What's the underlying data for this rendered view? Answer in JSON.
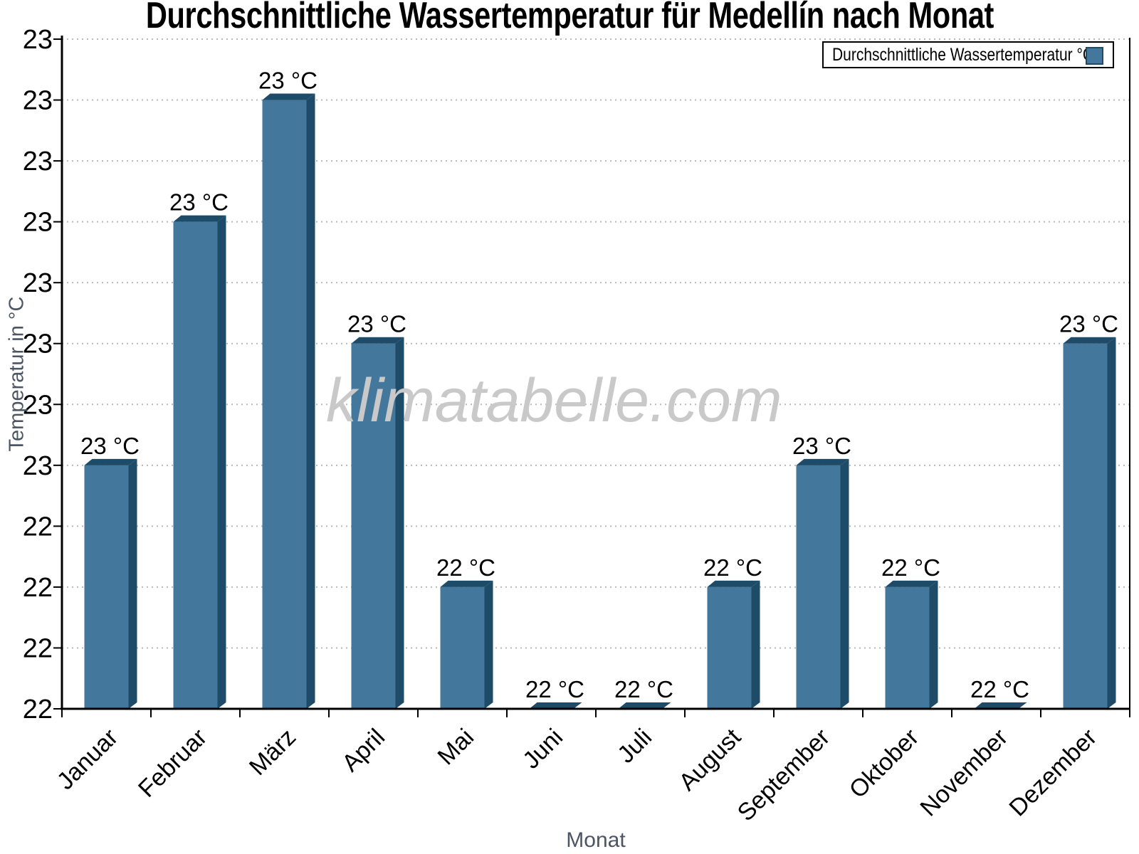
{
  "title": "Durchschnittliche Wassertemperatur für Medellín nach Monat",
  "watermark": "klimatabelle.com",
  "legend": {
    "label": "Durchschnittliche Wassertemperatur °C"
  },
  "chart_data": {
    "type": "bar",
    "title": "Durchschnittliche Wassertemperatur für Medellín nach Monat",
    "xlabel": "Monat",
    "ylabel": "Temperatur in °C",
    "categories": [
      "Januar",
      "Februar",
      "März",
      "April",
      "Mai",
      "Juni",
      "Juli",
      "August",
      "September",
      "Oktober",
      "November",
      "Dezember"
    ],
    "values": [
      22.5,
      22.9,
      23.1,
      22.7,
      22.3,
      22.1,
      22.1,
      22.3,
      22.5,
      22.3,
      22.1,
      22.7
    ],
    "bar_labels": [
      "23 °C",
      "23 °C",
      "23 °C",
      "23 °C",
      "22 °C",
      "22 °C",
      "22 °C",
      "22 °C",
      "23 °C",
      "22 °C",
      "22 °C",
      "23 °C"
    ],
    "ylim": [
      22.1,
      23.2
    ],
    "ytick_step": 0.1,
    "ytick_labels_top_to_bottom": [
      "23",
      "23",
      "23",
      "23",
      "23",
      "23",
      "23",
      "23",
      "22",
      "22",
      "22",
      "22"
    ],
    "grid": true,
    "legend_position": "top-right",
    "legend_label": "Durchschnittliche Wassertemperatur °C",
    "colors": {
      "bar_fill": "#44779c",
      "bar_edge": "#1d4b68",
      "grid": "#b9b9b9",
      "axis": "#000000",
      "muted_text": "#4b5563",
      "watermark": "#c9c9c9"
    }
  }
}
